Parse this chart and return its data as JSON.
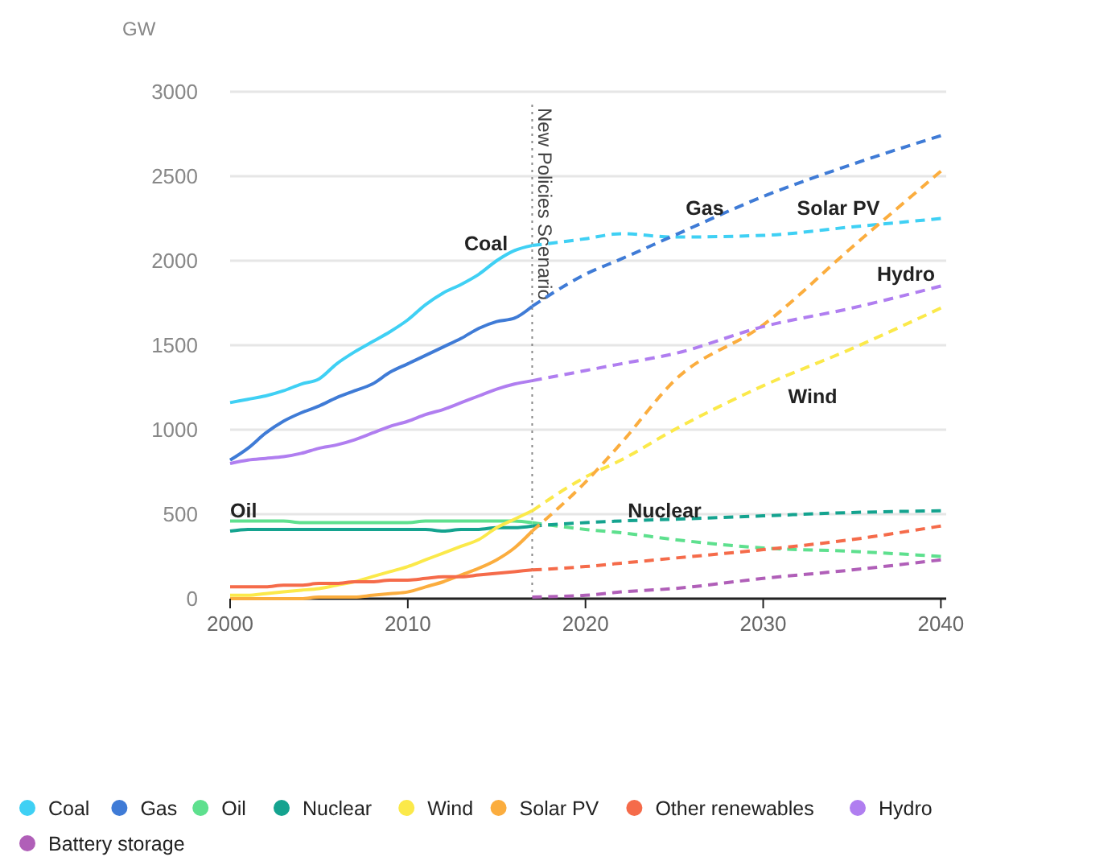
{
  "chart_data": {
    "type": "line",
    "ylabel": "GW",
    "x": [
      2000,
      2001,
      2002,
      2003,
      2004,
      2005,
      2006,
      2007,
      2008,
      2009,
      2010,
      2011,
      2012,
      2013,
      2014,
      2015,
      2016,
      2017
    ],
    "series": [
      {
        "name": "Coal",
        "color": "#3fd0f4",
        "line_style": "solid",
        "values": [
          1160,
          1180,
          1200,
          1230,
          1270,
          1300,
          1390,
          1460,
          1520,
          1580,
          1650,
          1740,
          1810,
          1860,
          1920,
          2000,
          2060,
          2090
        ]
      },
      {
        "name": "Gas",
        "color": "#3f7bd6",
        "line_style": "solid",
        "values": [
          820,
          890,
          980,
          1050,
          1100,
          1140,
          1190,
          1230,
          1270,
          1340,
          1390,
          1440,
          1490,
          1540,
          1600,
          1640,
          1660,
          1730
        ]
      },
      {
        "name": "Oil",
        "color": "#5ee08e",
        "line_style": "solid",
        "values": [
          460,
          460,
          460,
          460,
          450,
          450,
          450,
          450,
          450,
          450,
          450,
          460,
          460,
          460,
          460,
          460,
          460,
          450
        ]
      },
      {
        "name": "Nuclear",
        "color": "#14a38f",
        "line_style": "solid",
        "values": [
          400,
          410,
          410,
          410,
          410,
          410,
          410,
          410,
          410,
          410,
          410,
          410,
          400,
          410,
          410,
          420,
          420,
          430
        ]
      },
      {
        "name": "Wind",
        "color": "#fbe94a",
        "line_style": "solid",
        "values": [
          20,
          20,
          30,
          40,
          50,
          60,
          80,
          100,
          130,
          160,
          190,
          230,
          270,
          310,
          350,
          420,
          470,
          520
        ]
      },
      {
        "name": "Solar PV",
        "color": "#fbad3e",
        "line_style": "solid",
        "values": [
          0,
          0,
          0,
          0,
          0,
          10,
          10,
          10,
          20,
          30,
          40,
          70,
          100,
          140,
          180,
          230,
          300,
          400
        ]
      },
      {
        "name": "Other renewables",
        "color": "#f56b4a",
        "line_style": "solid",
        "values": [
          70,
          70,
          70,
          80,
          80,
          90,
          90,
          100,
          100,
          110,
          110,
          120,
          130,
          130,
          140,
          150,
          160,
          170
        ]
      },
      {
        "name": "Hydro",
        "color": "#b07ef0",
        "line_style": "solid",
        "values": [
          800,
          820,
          830,
          840,
          860,
          890,
          910,
          940,
          980,
          1020,
          1050,
          1090,
          1120,
          1160,
          1200,
          1240,
          1270,
          1290
        ]
      },
      {
        "name": "Battery storage",
        "color": "#b05fb8",
        "line_style": "dashed",
        "x": [
          2017,
          2020,
          2022,
          2025,
          2030,
          2035,
          2040
        ],
        "values": [
          10,
          20,
          40,
          60,
          120,
          170,
          230
        ]
      },
      {
        "color": "#3fd0f4",
        "line_style": "dashed",
        "x": [
          2017,
          2020,
          2022,
          2025,
          2030,
          2035,
          2040
        ],
        "values": [
          2090,
          2130,
          2160,
          2140,
          2150,
          2200,
          2250
        ]
      },
      {
        "color": "#3f7bd6",
        "line_style": "dashed",
        "x": [
          2017,
          2020,
          2022,
          2025,
          2030,
          2035,
          2040
        ],
        "values": [
          1730,
          1920,
          2010,
          2150,
          2380,
          2570,
          2740
        ]
      },
      {
        "color": "#5ee08e",
        "line_style": "dashed",
        "x": [
          2017,
          2020,
          2022,
          2025,
          2030,
          2035,
          2040
        ],
        "values": [
          450,
          410,
          390,
          350,
          300,
          280,
          250
        ]
      },
      {
        "color": "#14a38f",
        "line_style": "dashed",
        "x": [
          2017,
          2020,
          2022,
          2025,
          2030,
          2035,
          2040
        ],
        "values": [
          430,
          450,
          460,
          470,
          490,
          510,
          520
        ]
      },
      {
        "color": "#fbe94a",
        "line_style": "dashed",
        "x": [
          2017,
          2020,
          2022,
          2025,
          2030,
          2035,
          2040
        ],
        "values": [
          520,
          720,
          820,
          1000,
          1260,
          1480,
          1720
        ]
      },
      {
        "color": "#fbad3e",
        "line_style": "dashed",
        "x": [
          2017,
          2020,
          2022,
          2025,
          2030,
          2035,
          2040
        ],
        "values": [
          400,
          690,
          920,
          1290,
          1620,
          2080,
          2530
        ]
      },
      {
        "color": "#f56b4a",
        "line_style": "dashed",
        "x": [
          2017,
          2020,
          2022,
          2025,
          2030,
          2035,
          2040
        ],
        "values": [
          170,
          190,
          210,
          240,
          290,
          350,
          430
        ]
      },
      {
        "color": "#b07ef0",
        "line_style": "dashed",
        "x": [
          2017,
          2020,
          2022,
          2025,
          2030,
          2035,
          2040
        ],
        "values": [
          1290,
          1350,
          1390,
          1450,
          1610,
          1720,
          1850
        ]
      }
    ],
    "xlim": [
      2000,
      2040.3
    ],
    "xticks": [
      2000,
      2010,
      2020,
      2030,
      2040
    ],
    "ylim": [
      0,
      3000
    ],
    "yticks": [
      0,
      500,
      1000,
      1500,
      2000,
      2500,
      3000
    ],
    "grid": "y",
    "legend": "bottom",
    "marker": "none",
    "ref_lines": [
      {
        "axis": "x",
        "value": 2017,
        "label": "New Policies Scenario",
        "color": "#888888",
        "line_style": "dotted"
      }
    ]
  }
}
